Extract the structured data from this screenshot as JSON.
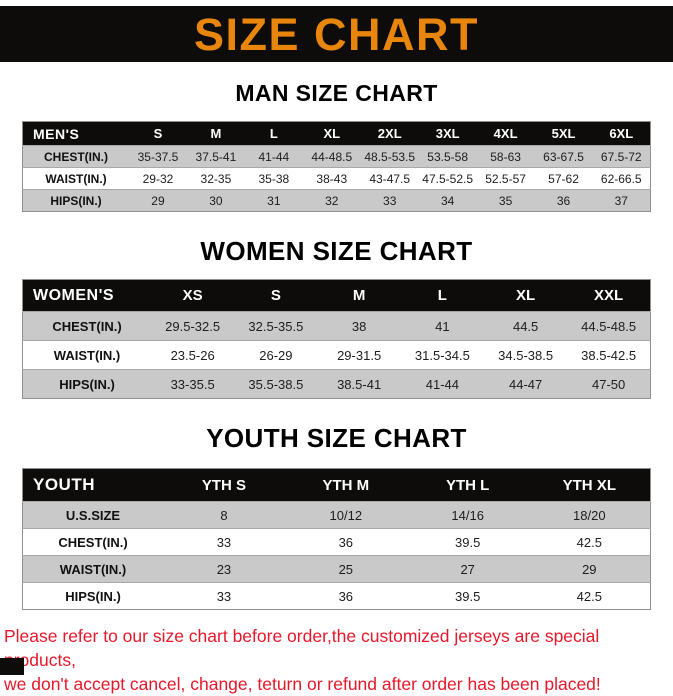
{
  "banner": {
    "title": "SIZE CHART"
  },
  "colors": {
    "banner_bg": "#0d0c0a",
    "banner_text": "#e8850c",
    "table_header_bg": "#0d0c0a",
    "table_header_text": "#ffffff",
    "row_gray": "#c9c9c9",
    "row_white": "#ffffff",
    "disclaimer_red": "#e5182b"
  },
  "chart_data": [
    {
      "type": "table",
      "title": "MAN SIZE CHART",
      "header": [
        "MEN'S",
        "S",
        "M",
        "L",
        "XL",
        "2XL",
        "3XL",
        "4XL",
        "5XL",
        "6XL"
      ],
      "rows": [
        [
          "CHEST(IN.)",
          "35-37.5",
          "37.5-41",
          "41-44",
          "44-48.5",
          "48.5-53.5",
          "53.5-58",
          "58-63",
          "63-67.5",
          "67.5-72"
        ],
        [
          "WAIST(IN.)",
          "29-32",
          "32-35",
          "35-38",
          "38-43",
          "43-47.5",
          "47.5-52.5",
          "52.5-57",
          "57-62",
          "62-66.5"
        ],
        [
          "HIPS(IN.)",
          "29",
          "30",
          "31",
          "32",
          "33",
          "34",
          "35",
          "36",
          "37"
        ]
      ]
    },
    {
      "type": "table",
      "title": "WOMEN SIZE CHART",
      "header": [
        "WOMEN'S",
        "XS",
        "S",
        "M",
        "L",
        "XL",
        "XXL"
      ],
      "rows": [
        [
          "CHEST(IN.)",
          "29.5-32.5",
          "32.5-35.5",
          "38",
          "41",
          "44.5",
          "44.5-48.5"
        ],
        [
          "WAIST(IN.)",
          "23.5-26",
          "26-29",
          "29-31.5",
          "31.5-34.5",
          "34.5-38.5",
          "38.5-42.5"
        ],
        [
          "HIPS(IN.)",
          "33-35.5",
          "35.5-38.5",
          "38.5-41",
          "41-44",
          "44-47",
          "47-50"
        ]
      ]
    },
    {
      "type": "table",
      "title": "YOUTH SIZE CHART",
      "header": [
        "YOUTH",
        "YTH S",
        "YTH M",
        "YTH L",
        "YTH XL"
      ],
      "rows": [
        [
          "U.S.SIZE",
          "8",
          "10/12",
          "14/16",
          "18/20"
        ],
        [
          "CHEST(IN.)",
          "33",
          "36",
          "39.5",
          "42.5"
        ],
        [
          "WAIST(IN.)",
          "23",
          "25",
          "27",
          "29"
        ],
        [
          "HIPS(IN.)",
          "33",
          "36",
          "39.5",
          "42.5"
        ]
      ]
    }
  ],
  "disclaimer": {
    "line1": "Please refer to our size chart before order,the customized jerseys are special products,",
    "line2": "we don't accept cancel, change, teturn or refund after order has been placed!"
  }
}
